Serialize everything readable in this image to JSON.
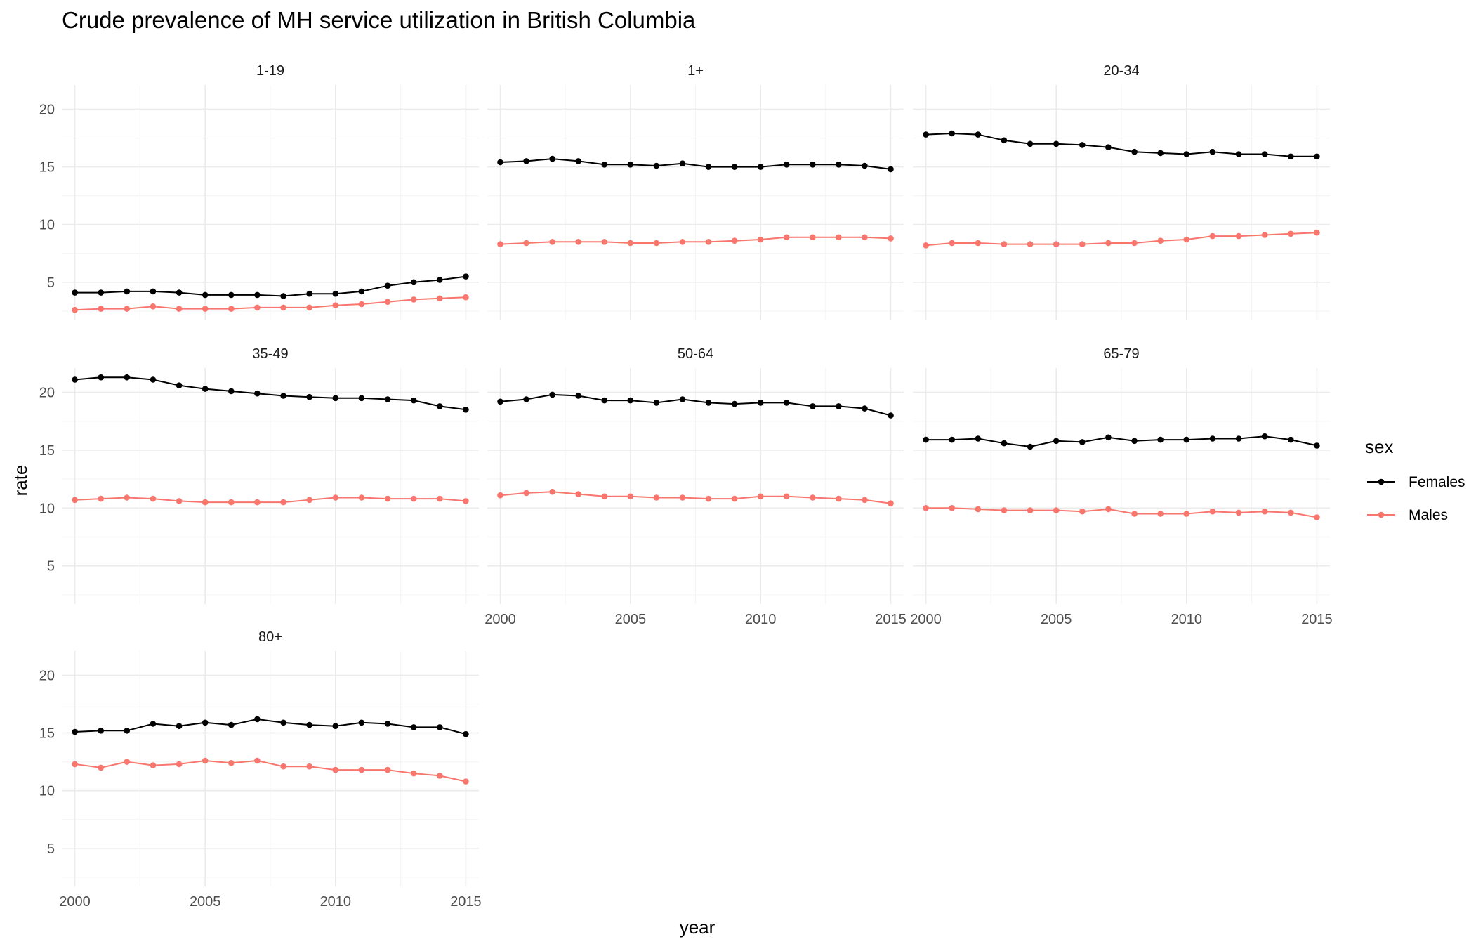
{
  "chart_data": {
    "type": "line",
    "title": "Crude prevalence of MH service utilization in British Columbia",
    "xlabel": "year",
    "ylabel": "rate",
    "xlim": [
      1999.5,
      2015.5
    ],
    "ylim": [
      1.7,
      22.1
    ],
    "x_ticks": [
      2000,
      2005,
      2010,
      2015
    ],
    "y_ticks": [
      5,
      10,
      15,
      20
    ],
    "x": [
      2000,
      2001,
      2002,
      2003,
      2004,
      2005,
      2006,
      2007,
      2008,
      2009,
      2010,
      2011,
      2012,
      2013,
      2014,
      2015
    ],
    "grid": true,
    "legend": {
      "title": "sex",
      "position": "right",
      "entries": [
        {
          "name": "Females",
          "color": "#000000"
        },
        {
          "name": "Males",
          "color": "#F8766D"
        }
      ]
    },
    "panels": [
      {
        "label": "1-19",
        "series": [
          {
            "name": "Females",
            "values": [
              4.1,
              4.1,
              4.2,
              4.2,
              4.1,
              3.9,
              3.9,
              3.9,
              3.8,
              4.0,
              4.0,
              4.2,
              4.7,
              5.0,
              5.2,
              5.5
            ]
          },
          {
            "name": "Males",
            "values": [
              2.6,
              2.7,
              2.7,
              2.9,
              2.7,
              2.7,
              2.7,
              2.8,
              2.8,
              2.8,
              3.0,
              3.1,
              3.3,
              3.5,
              3.6,
              3.7
            ]
          }
        ]
      },
      {
        "label": "1+",
        "series": [
          {
            "name": "Females",
            "values": [
              15.4,
              15.5,
              15.7,
              15.5,
              15.2,
              15.2,
              15.1,
              15.3,
              15.0,
              15.0,
              15.0,
              15.2,
              15.2,
              15.2,
              15.1,
              14.8
            ]
          },
          {
            "name": "Males",
            "values": [
              8.3,
              8.4,
              8.5,
              8.5,
              8.5,
              8.4,
              8.4,
              8.5,
              8.5,
              8.6,
              8.7,
              8.9,
              8.9,
              8.9,
              8.9,
              8.8
            ]
          }
        ]
      },
      {
        "label": "20-34",
        "series": [
          {
            "name": "Females",
            "values": [
              17.8,
              17.9,
              17.8,
              17.3,
              17.0,
              17.0,
              16.9,
              16.7,
              16.3,
              16.2,
              16.1,
              16.3,
              16.1,
              16.1,
              15.9,
              15.9
            ]
          },
          {
            "name": "Males",
            "values": [
              8.2,
              8.4,
              8.4,
              8.3,
              8.3,
              8.3,
              8.3,
              8.4,
              8.4,
              8.6,
              8.7,
              9.0,
              9.0,
              9.1,
              9.2,
              9.3
            ]
          }
        ]
      },
      {
        "label": "35-49",
        "series": [
          {
            "name": "Females",
            "values": [
              21.1,
              21.3,
              21.3,
              21.1,
              20.6,
              20.3,
              20.1,
              19.9,
              19.7,
              19.6,
              19.5,
              19.5,
              19.4,
              19.3,
              18.8,
              18.5
            ]
          },
          {
            "name": "Males",
            "values": [
              10.7,
              10.8,
              10.9,
              10.8,
              10.6,
              10.5,
              10.5,
              10.5,
              10.5,
              10.7,
              10.9,
              10.9,
              10.8,
              10.8,
              10.8,
              10.6
            ]
          }
        ]
      },
      {
        "label": "50-64",
        "series": [
          {
            "name": "Females",
            "values": [
              19.2,
              19.4,
              19.8,
              19.7,
              19.3,
              19.3,
              19.1,
              19.4,
              19.1,
              19.0,
              19.1,
              19.1,
              18.8,
              18.8,
              18.6,
              18.0
            ]
          },
          {
            "name": "Males",
            "values": [
              11.1,
              11.3,
              11.4,
              11.2,
              11.0,
              11.0,
              10.9,
              10.9,
              10.8,
              10.8,
              11.0,
              11.0,
              10.9,
              10.8,
              10.7,
              10.4
            ]
          }
        ]
      },
      {
        "label": "65-79",
        "series": [
          {
            "name": "Females",
            "values": [
              15.9,
              15.9,
              16.0,
              15.6,
              15.3,
              15.8,
              15.7,
              16.1,
              15.8,
              15.9,
              15.9,
              16.0,
              16.0,
              16.2,
              15.9,
              15.4
            ]
          },
          {
            "name": "Males",
            "values": [
              10.0,
              10.0,
              9.9,
              9.8,
              9.8,
              9.8,
              9.7,
              9.9,
              9.5,
              9.5,
              9.5,
              9.7,
              9.6,
              9.7,
              9.6,
              9.2
            ]
          }
        ]
      },
      {
        "label": "80+",
        "series": [
          {
            "name": "Females",
            "values": [
              15.1,
              15.2,
              15.2,
              15.8,
              15.6,
              15.9,
              15.7,
              16.2,
              15.9,
              15.7,
              15.6,
              15.9,
              15.8,
              15.5,
              15.5,
              14.9
            ]
          },
          {
            "name": "Males",
            "values": [
              12.3,
              12.0,
              12.5,
              12.2,
              12.3,
              12.6,
              12.4,
              12.6,
              12.1,
              12.1,
              11.8,
              11.8,
              11.8,
              11.5,
              11.3,
              10.8
            ]
          }
        ]
      }
    ]
  }
}
